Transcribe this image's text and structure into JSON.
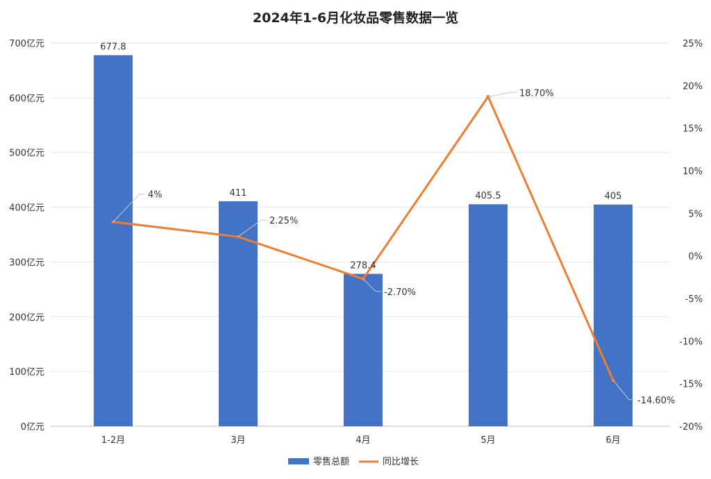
{
  "chart_data": {
    "type": "bar",
    "title": "2024年1-6月化妆品零售数据一览",
    "categories": [
      "1-2月",
      "3月",
      "4月",
      "5月",
      "6月"
    ],
    "series": [
      {
        "name": "零售总额",
        "type": "bar",
        "axis": "left",
        "color": "#4472C4",
        "values": [
          677.8,
          411,
          278.4,
          405.5,
          405
        ],
        "labels": [
          "677.8",
          "411",
          "278.4",
          "405.5",
          "405"
        ]
      },
      {
        "name": "同比增长",
        "type": "line",
        "axis": "right",
        "color": "#ED7D31",
        "values": [
          4,
          2.25,
          -2.7,
          18.7,
          -14.6
        ],
        "labels": [
          "4%",
          "2.25%",
          "-2.70%",
          "18.70%",
          "-14.60%"
        ]
      }
    ],
    "y_left": {
      "min": 0,
      "max": 700,
      "step": 100,
      "ticks": [
        "0亿元",
        "100亿元",
        "200亿元",
        "300亿元",
        "400亿元",
        "500亿元",
        "600亿元",
        "700亿元"
      ]
    },
    "y_right": {
      "min": -20,
      "max": 25,
      "step": 5,
      "ticks": [
        "-20%",
        "-15%",
        "-10%",
        "-5%",
        "0%",
        "5%",
        "10%",
        "15%",
        "20%",
        "25%"
      ]
    },
    "grid": true,
    "legend_position": "bottom"
  }
}
